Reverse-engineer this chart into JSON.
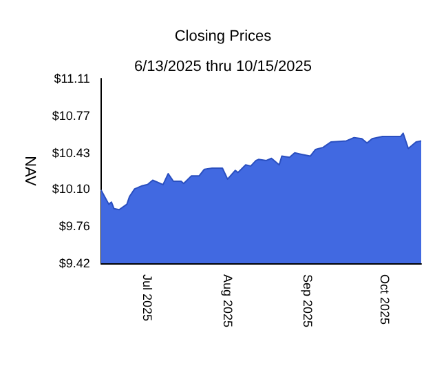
{
  "chart_data": {
    "type": "area",
    "title": "Closing Prices",
    "subtitle": "6/13/2025 thru 10/15/2025",
    "ylabel": "NAV",
    "color": "#4169e1",
    "marker": "none",
    "x": [
      "2025-06-13",
      "2025-06-16",
      "2025-06-17",
      "2025-06-18",
      "2025-06-20",
      "2025-06-23",
      "2025-06-24",
      "2025-06-26",
      "2025-06-29",
      "2025-07-01",
      "2025-07-03",
      "2025-07-07",
      "2025-07-09",
      "2025-07-11",
      "2025-07-14",
      "2025-07-15",
      "2025-07-18",
      "2025-07-21",
      "2025-07-23",
      "2025-07-26",
      "2025-07-30",
      "2025-08-01",
      "2025-08-04",
      "2025-08-05",
      "2025-08-08",
      "2025-08-10",
      "2025-08-12",
      "2025-08-13",
      "2025-08-16",
      "2025-08-18",
      "2025-08-21",
      "2025-08-22",
      "2025-08-25",
      "2025-08-27",
      "2025-08-29",
      "2025-09-02",
      "2025-09-04",
      "2025-09-07",
      "2025-09-10",
      "2025-09-16",
      "2025-09-19",
      "2025-09-22",
      "2025-09-24",
      "2025-09-26",
      "2025-09-30",
      "2025-10-03",
      "2025-10-07",
      "2025-10-08",
      "2025-10-10",
      "2025-10-13",
      "2025-10-15"
    ],
    "values": [
      10.09,
      9.96,
      9.98,
      9.92,
      9.91,
      9.96,
      10.03,
      10.1,
      10.13,
      10.14,
      10.18,
      10.14,
      10.24,
      10.17,
      10.17,
      10.15,
      10.22,
      10.22,
      10.28,
      10.29,
      10.29,
      10.19,
      10.27,
      10.25,
      10.32,
      10.31,
      10.36,
      10.37,
      10.36,
      10.38,
      10.32,
      10.4,
      10.39,
      10.43,
      10.42,
      10.4,
      10.46,
      10.48,
      10.53,
      10.54,
      10.57,
      10.56,
      10.52,
      10.56,
      10.58,
      10.58,
      10.58,
      10.61,
      10.47,
      10.53,
      10.54
    ],
    "xlim": [
      "2025-06-13",
      "2025-10-15"
    ],
    "xticks": [
      {
        "value": "2025-07-01",
        "label": "Jul 2025"
      },
      {
        "value": "2025-08-01",
        "label": "Aug 2025"
      },
      {
        "value": "2025-09-01",
        "label": "Sep 2025"
      },
      {
        "value": "2025-10-01",
        "label": "Oct 2025"
      }
    ],
    "ylim": [
      9.42,
      11.11
    ],
    "yticks": [
      {
        "value": 9.42,
        "label": "$9.42"
      },
      {
        "value": 9.76,
        "label": "$9.76"
      },
      {
        "value": 10.1,
        "label": "$10.10"
      },
      {
        "value": 10.43,
        "label": "$10.43"
      },
      {
        "value": 10.77,
        "label": "$10.77"
      },
      {
        "value": 11.11,
        "label": "$11.11"
      }
    ]
  }
}
